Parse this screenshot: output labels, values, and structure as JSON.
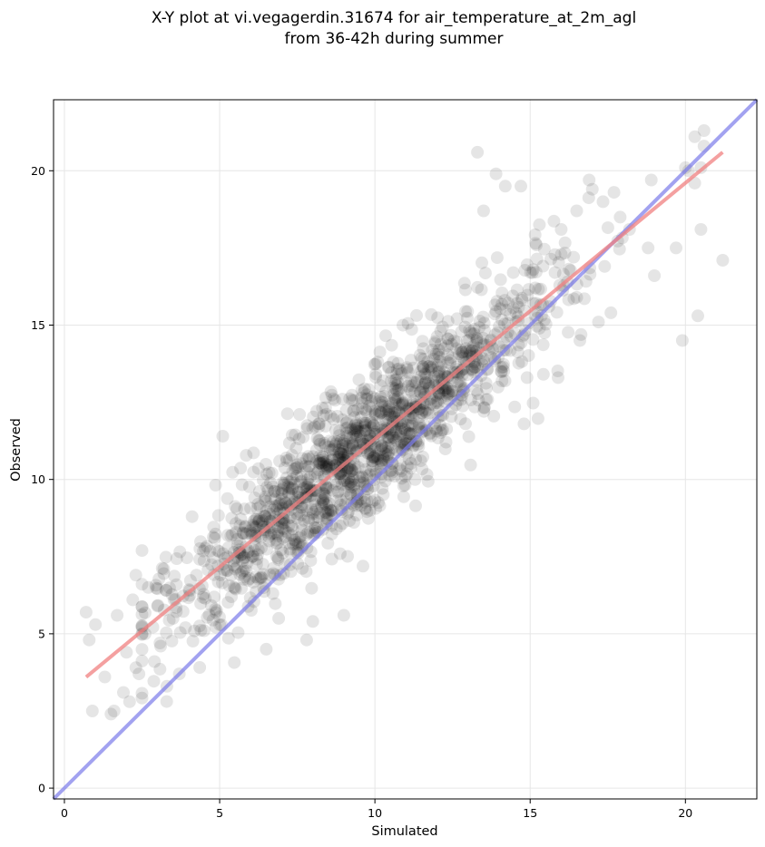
{
  "chart_data": {
    "type": "scatter",
    "title_lines": [
      "X-Y plot at vi.vegagerdin.31674 for air_temperature_at_2m_agl",
      "from 36-42h during summer"
    ],
    "xlabel": "Simulated",
    "ylabel": "Observed",
    "xlim": [
      -0.35,
      22.3
    ],
    "ylim": [
      -0.35,
      22.3
    ],
    "xticks": [
      0,
      5,
      10,
      15,
      20
    ],
    "yticks": [
      0,
      5,
      10,
      15,
      20
    ],
    "grid": true,
    "point_color": "#000000",
    "point_alpha": 0.1,
    "regression_line": {
      "color": "#f08080",
      "x": [
        0.7,
        21.2
      ],
      "y": [
        3.6,
        20.6
      ]
    },
    "identity_line": {
      "color": "#7b7bea",
      "x": [
        -0.35,
        22.3
      ],
      "y": [
        -0.35,
        22.3
      ]
    },
    "point_cloud": {
      "count": 1500,
      "x_mean": 9.5,
      "x_std": 3.0,
      "slope": 0.83,
      "intercept": 3.0,
      "residual_std": 1.05
    },
    "outlier_points": [
      [
        0.7,
        5.7
      ],
      [
        0.8,
        4.8
      ],
      [
        0.9,
        2.5
      ],
      [
        1.0,
        5.3
      ],
      [
        1.3,
        3.6
      ],
      [
        1.5,
        2.4
      ],
      [
        1.6,
        2.5
      ],
      [
        1.7,
        5.6
      ],
      [
        1.9,
        3.1
      ],
      [
        2.0,
        4.4
      ],
      [
        2.1,
        2.8
      ],
      [
        2.2,
        6.1
      ],
      [
        2.3,
        6.9
      ],
      [
        2.3,
        3.9
      ],
      [
        2.4,
        3.7
      ],
      [
        2.6,
        5.0
      ],
      [
        2.7,
        6.5
      ],
      [
        2.9,
        4.1
      ],
      [
        3.0,
        5.9
      ],
      [
        3.1,
        4.6
      ],
      [
        3.2,
        7.1
      ],
      [
        3.3,
        3.3
      ],
      [
        3.5,
        5.5
      ],
      [
        3.7,
        3.7
      ],
      [
        3.9,
        5.2
      ],
      [
        4.5,
        5.1
      ],
      [
        5.1,
        11.4
      ],
      [
        6.5,
        4.5
      ],
      [
        6.9,
        5.5
      ],
      [
        7.8,
        4.8
      ],
      [
        8.0,
        5.4
      ],
      [
        9.0,
        5.6
      ],
      [
        13.3,
        20.6
      ],
      [
        13.5,
        18.7
      ],
      [
        13.9,
        19.9
      ],
      [
        14.2,
        19.5
      ],
      [
        14.7,
        19.5
      ],
      [
        15.2,
        17.6
      ],
      [
        15.8,
        16.7
      ],
      [
        16.0,
        18.1
      ],
      [
        16.2,
        16.4
      ],
      [
        16.5,
        18.7
      ],
      [
        16.6,
        14.5
      ],
      [
        16.9,
        19.7
      ],
      [
        17.0,
        19.4
      ],
      [
        17.2,
        15.1
      ],
      [
        17.6,
        15.4
      ],
      [
        17.7,
        19.3
      ],
      [
        17.9,
        18.5
      ],
      [
        18.8,
        17.5
      ],
      [
        18.9,
        19.7
      ],
      [
        19.0,
        16.6
      ],
      [
        19.7,
        17.5
      ],
      [
        19.9,
        14.5
      ],
      [
        20.0,
        20.1
      ],
      [
        20.1,
        20.0
      ],
      [
        20.3,
        19.6
      ],
      [
        20.3,
        21.1
      ],
      [
        20.4,
        15.3
      ],
      [
        20.5,
        20.1
      ],
      [
        20.5,
        18.1
      ],
      [
        20.6,
        20.8
      ],
      [
        20.6,
        21.3
      ],
      [
        21.2,
        17.1
      ],
      [
        16.4,
        17.2
      ],
      [
        15.3,
        14.9
      ],
      [
        14.9,
        13.3
      ],
      [
        15.6,
        15.6
      ],
      [
        15.1,
        16.8
      ],
      [
        14.8,
        11.8
      ],
      [
        15.9,
        13.3
      ],
      [
        16.5,
        15.9
      ],
      [
        18.2,
        18.1
      ],
      [
        17.4,
        16.9
      ]
    ]
  }
}
